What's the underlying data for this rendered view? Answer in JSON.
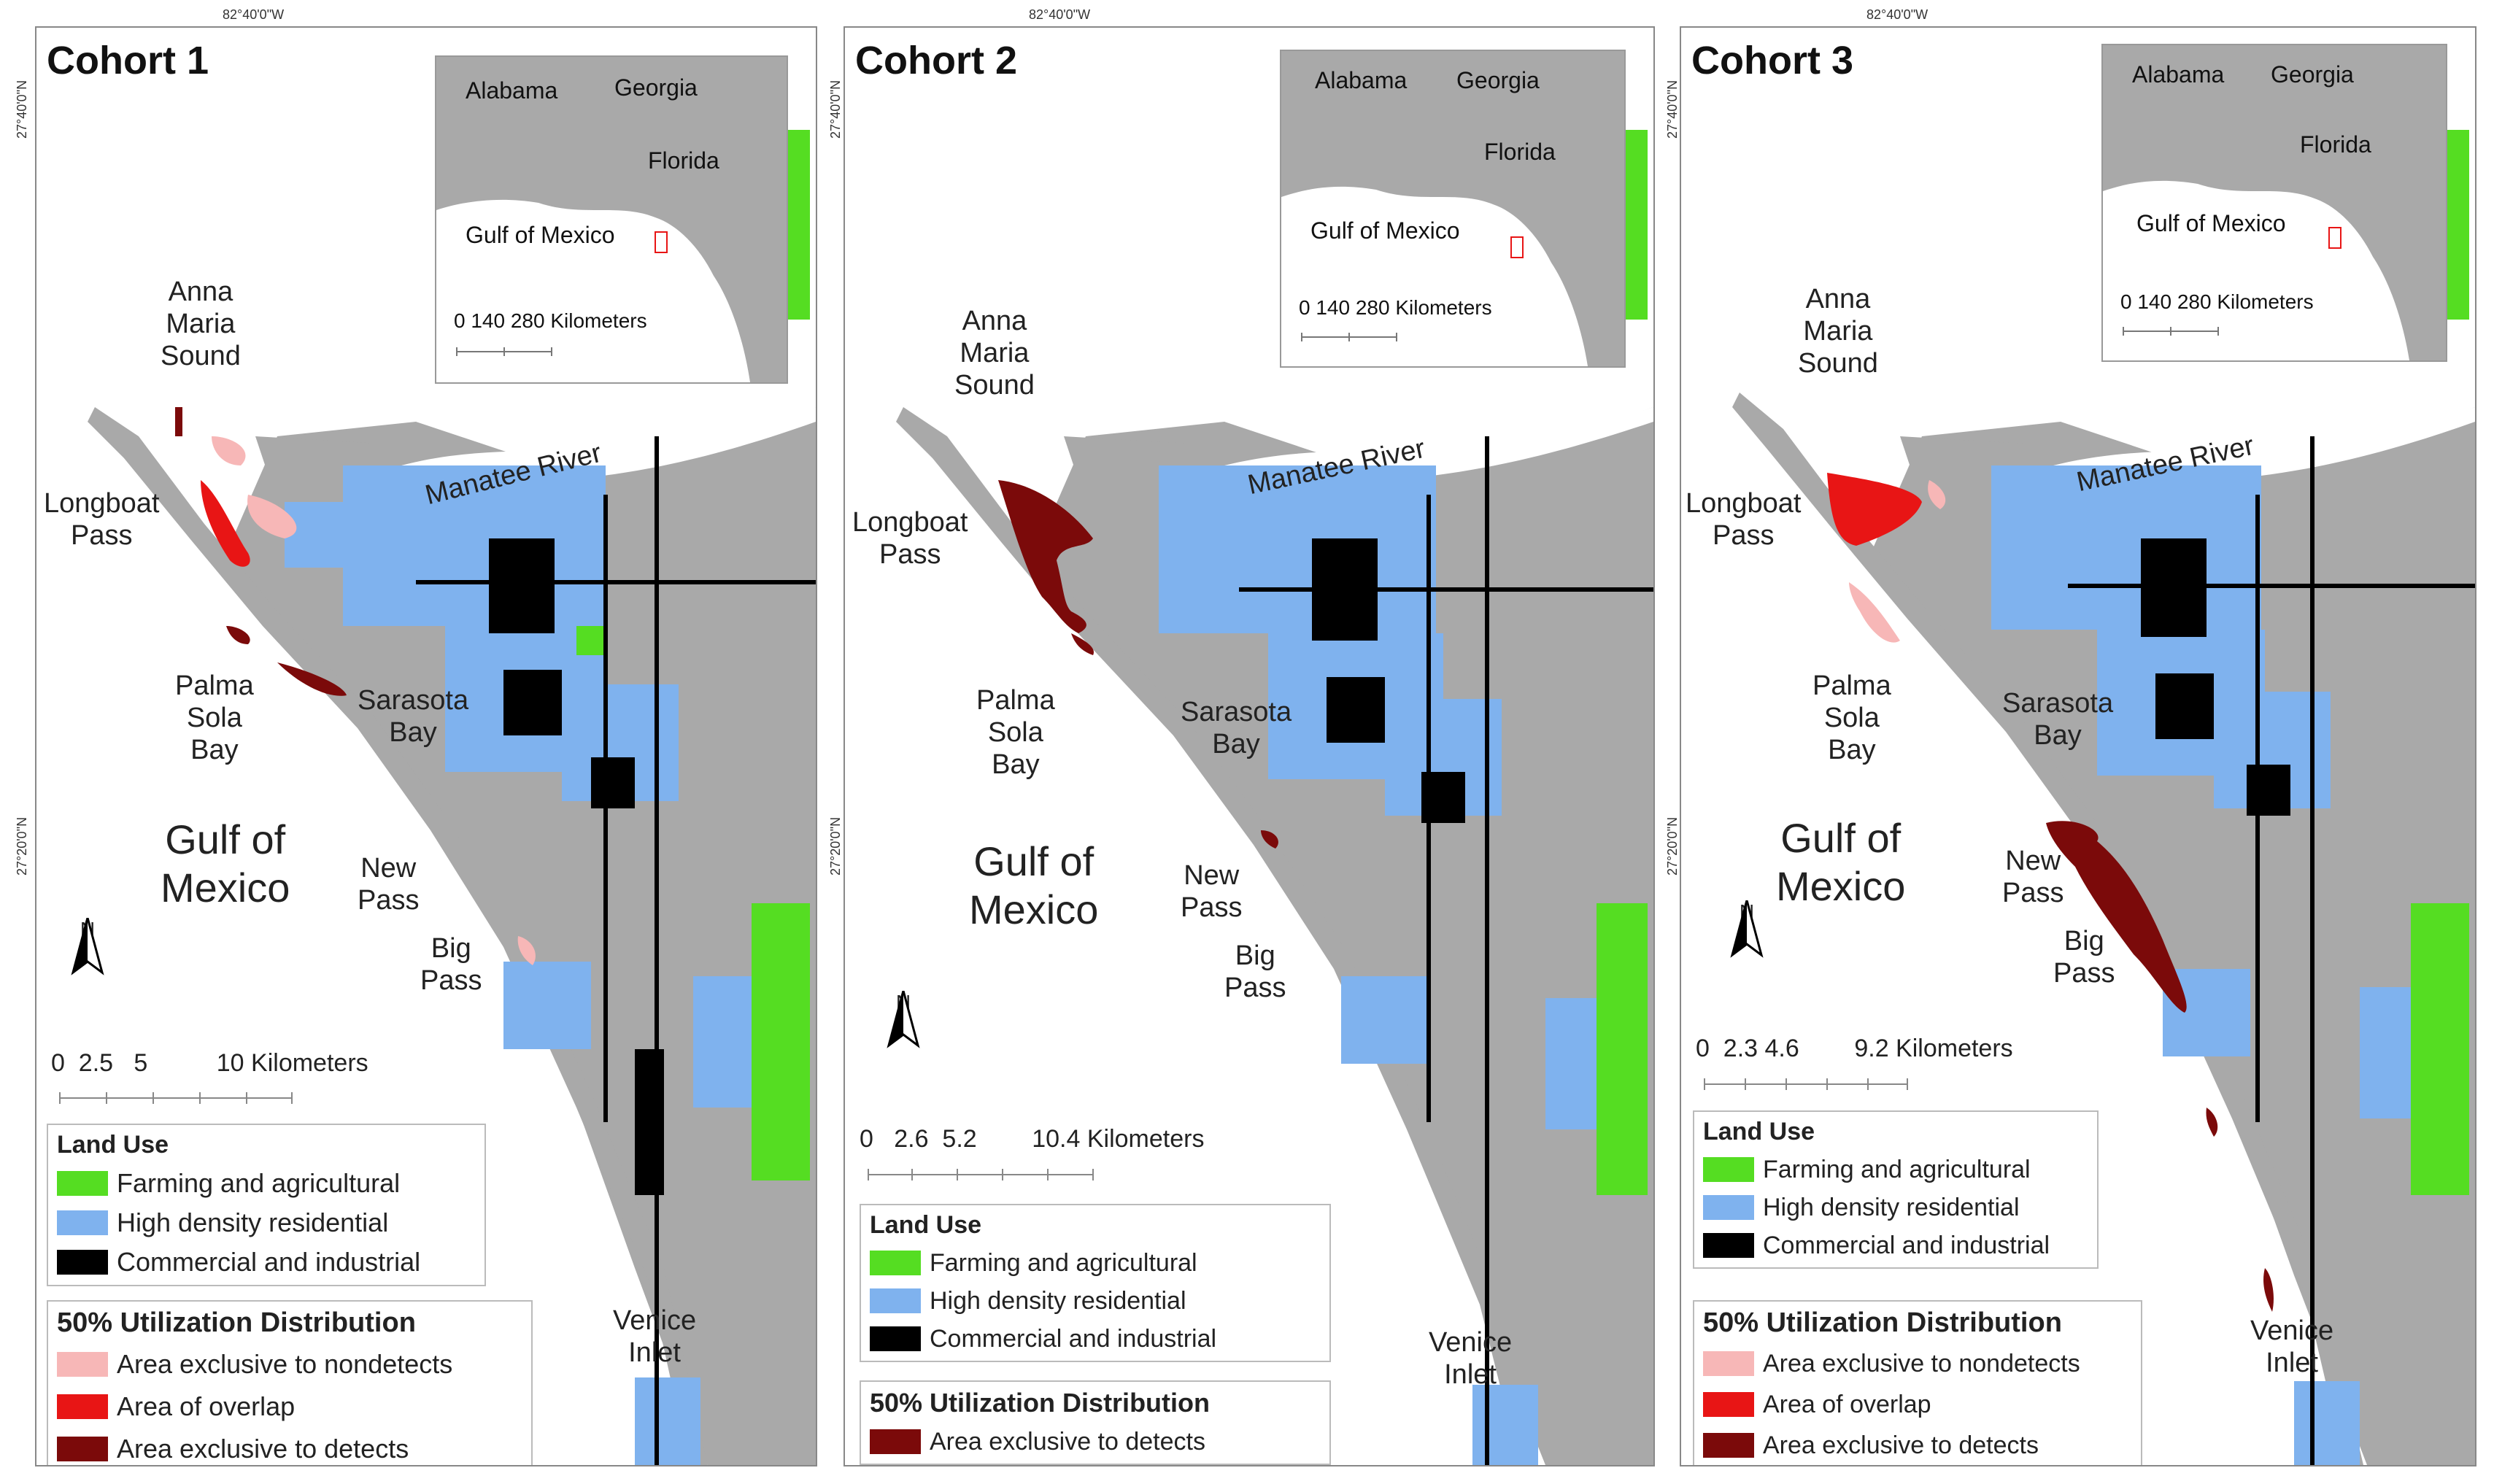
{
  "coords": {
    "lon_label": "82°40'0\"W",
    "lat_top": "27°40'0\"N",
    "lat_mid": "27°20'0\"N"
  },
  "colors": {
    "farming": "#55dd22",
    "residential": "#7fb2ee",
    "commercial": "#000000",
    "land": "#a9a9a9",
    "nondetects": "#f7b7b7",
    "overlap": "#e81515",
    "detects": "#7b0a0a"
  },
  "inset": {
    "states": [
      "Alabama",
      "Georgia",
      "Florida"
    ],
    "sea": "Gulf of Mexico",
    "scale": "0  140  280 Kilometers"
  },
  "map_labels": {
    "anna_maria": "Anna\nMaria\nSound",
    "longboat": "Longboat\nPass",
    "palma_sola": "Palma\nSola\nBay",
    "sarasota": "Sarasota\nBay",
    "gulf": "Gulf of\nMexico",
    "new_pass": "New\nPass",
    "big_pass": "Big\nPass",
    "venice": "Venice\nInlet",
    "manatee": "Manatee River"
  },
  "north_label": "N",
  "panels": [
    {
      "title": "Cohort 1",
      "scale_text": "0  2.5   5          10 Kilometers",
      "land_use_title": "Land Use",
      "land_use": [
        "Farming and agricultural",
        "High density residential",
        "Commercial and industrial"
      ],
      "ud_title": "50% Utilization Distribution",
      "ud": [
        "Area exclusive to nondetects",
        "Area of overlap",
        "Area exclusive to detects"
      ]
    },
    {
      "title": "Cohort 2",
      "scale_text": "0   2.6  5.2        10.4 Kilometers",
      "land_use_title": "Land Use",
      "land_use": [
        "Farming and agricultural",
        "High density residential",
        "Commercial and industrial"
      ],
      "ud_title": "50% Utilization Distribution",
      "ud": [
        "Area exclusive to detects"
      ]
    },
    {
      "title": "Cohort 3",
      "scale_text": "0  2.3 4.6        9.2 Kilometers",
      "land_use_title": "Land Use",
      "land_use": [
        "Farming and agricultural",
        "High density residential",
        "Commercial and industrial"
      ],
      "ud_title": "50% Utilization Distribution",
      "ud": [
        "Area exclusive to nondetects",
        "Area of overlap",
        "Area exclusive to detects"
      ]
    }
  ]
}
